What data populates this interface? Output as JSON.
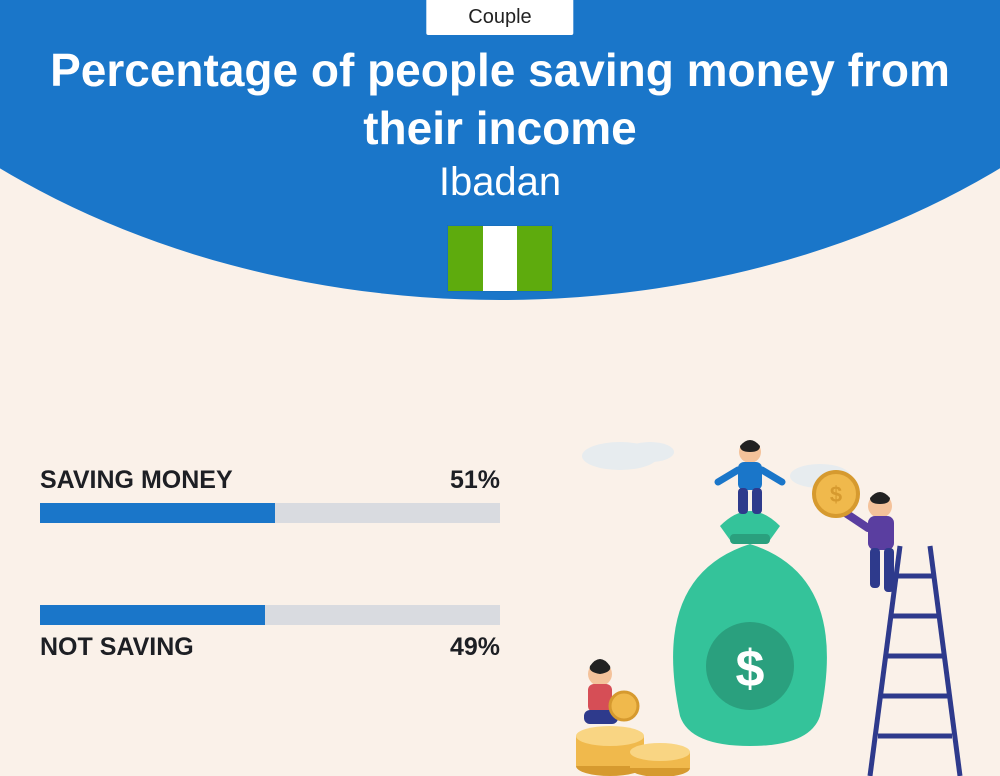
{
  "badge": "Couple",
  "title": "Percentage of people saving money from their income",
  "subtitle": "Ibadan",
  "flag": {
    "left": "#5eab0d",
    "mid": "#ffffff",
    "right": "#5eab0d"
  },
  "colors": {
    "arc": "#1a76c9",
    "page_bg": "#faf1e9",
    "bar_fill": "#1a76c9",
    "bar_track": "#d9dbe0",
    "text_dark": "#1d1f24"
  },
  "bars": [
    {
      "label": "SAVING MONEY",
      "value_text": "51%",
      "value": 51,
      "label_position": "above"
    },
    {
      "label": "NOT SAVING",
      "value_text": "49%",
      "value": 49,
      "label_position": "below"
    }
  ],
  "illustration": {
    "bag": "#34c39a",
    "bag_shadow": "#2aa07e",
    "coin": "#f0b94c",
    "coin_dark": "#d69a2f",
    "ladder": "#2e3a8c",
    "person1": {
      "shirt": "#1a76c9",
      "pants": "#2e3a8c",
      "skin": "#f4c29a",
      "hair": "#222"
    },
    "person2": {
      "shirt": "#5a3ea0",
      "pants": "#2e3a8c",
      "skin": "#f4c29a",
      "hair": "#222"
    },
    "person3": {
      "shirt": "#d64e56",
      "pants": "#2e3a8c",
      "skin": "#f4c29a",
      "hair": "#222"
    },
    "cloud": "#e7ecef"
  }
}
